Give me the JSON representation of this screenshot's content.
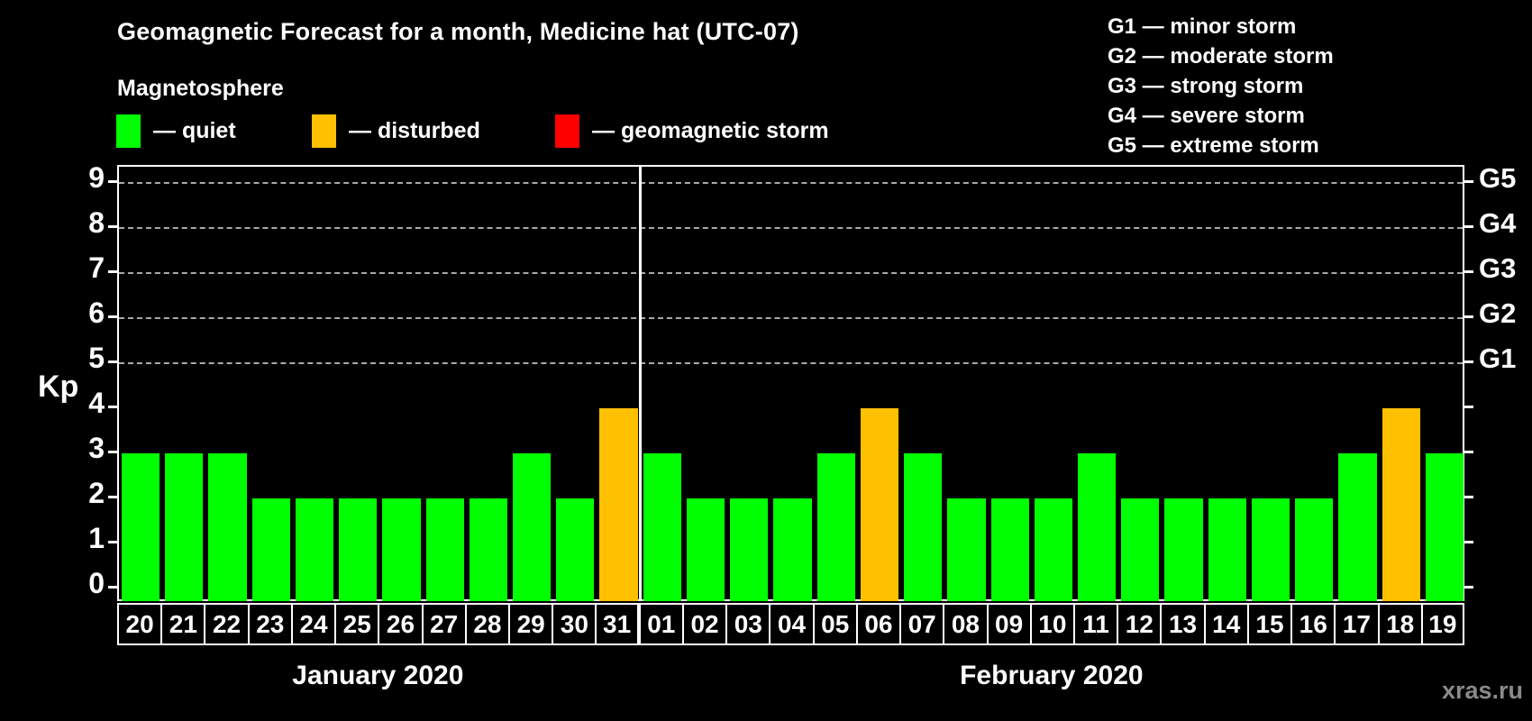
{
  "header": {
    "title": "Geomagnetic Forecast for a month, Medicine hat (UTC-07)",
    "subtitle": "Magnetosphere"
  },
  "legend": {
    "items": [
      {
        "name": "quiet",
        "label": "— quiet",
        "color": "#00FF00"
      },
      {
        "name": "disturbed",
        "label": "— disturbed",
        "color": "#FFC000"
      },
      {
        "name": "geomagnetic-storm",
        "label": "— geomagnetic storm",
        "color": "#FF0000"
      }
    ]
  },
  "g_legend": [
    "G1 — minor storm",
    "G2 — moderate storm",
    "G3 — strong storm",
    "G4 — severe storm",
    "G5 — extreme storm"
  ],
  "axes": {
    "kp_label": "Kp",
    "left_ticks": [
      0,
      1,
      2,
      3,
      4,
      5,
      6,
      7,
      8,
      9
    ],
    "right_labels": [
      {
        "kp": 5,
        "label": "G1"
      },
      {
        "kp": 6,
        "label": "G2"
      },
      {
        "kp": 7,
        "label": "G3"
      },
      {
        "kp": 8,
        "label": "G4"
      },
      {
        "kp": 9,
        "label": "G5"
      }
    ]
  },
  "watermark": "xras.ru",
  "chart_data": {
    "type": "bar",
    "title": "Geomagnetic Forecast for a month, Medicine hat (UTC-07)",
    "subtitle": "Magnetosphere",
    "ylabel": "Kp",
    "ylim": [
      0,
      9.4
    ],
    "yticks": [
      0,
      1,
      2,
      3,
      4,
      5,
      6,
      7,
      8,
      9
    ],
    "gridlines_at": [
      5,
      6,
      7,
      8,
      9
    ],
    "grid": "dashed horizontal at storm levels only",
    "legend_position": "top",
    "colors": {
      "quiet": "#00FF00",
      "disturbed": "#FFC000",
      "storm": "#FF0000"
    },
    "right_axis_labels": [
      {
        "kp": 5,
        "label": "G1"
      },
      {
        "kp": 6,
        "label": "G2"
      },
      {
        "kp": 7,
        "label": "G3"
      },
      {
        "kp": 8,
        "label": "G4"
      },
      {
        "kp": 9,
        "label": "G5"
      }
    ],
    "months": [
      {
        "label": "January 2020",
        "days": [
          "20",
          "21",
          "22",
          "23",
          "24",
          "25",
          "26",
          "27",
          "28",
          "29",
          "30",
          "31"
        ],
        "values": [
          3,
          3,
          3,
          2,
          2,
          2,
          2,
          2,
          2,
          3,
          2,
          4
        ],
        "status": [
          "quiet",
          "quiet",
          "quiet",
          "quiet",
          "quiet",
          "quiet",
          "quiet",
          "quiet",
          "quiet",
          "quiet",
          "quiet",
          "disturbed"
        ]
      },
      {
        "label": "February 2020",
        "days": [
          "01",
          "02",
          "03",
          "04",
          "05",
          "06",
          "07",
          "08",
          "09",
          "10",
          "11",
          "12",
          "13",
          "14",
          "15",
          "16",
          "17",
          "18",
          "19"
        ],
        "values": [
          3,
          2,
          2,
          2,
          3,
          4,
          3,
          2,
          2,
          2,
          3,
          2,
          2,
          2,
          2,
          2,
          3,
          4,
          3
        ],
        "status": [
          "quiet",
          "quiet",
          "quiet",
          "quiet",
          "quiet",
          "disturbed",
          "quiet",
          "quiet",
          "quiet",
          "quiet",
          "quiet",
          "quiet",
          "quiet",
          "quiet",
          "quiet",
          "quiet",
          "quiet",
          "disturbed",
          "quiet"
        ]
      }
    ]
  }
}
